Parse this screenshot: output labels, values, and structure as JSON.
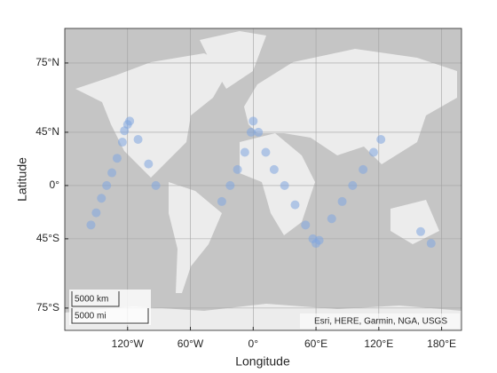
{
  "chart_data": {
    "type": "scatter",
    "xlabel": "Longitude",
    "ylabel": "Latitude",
    "x": [
      -155,
      -150,
      -145,
      -140,
      -135,
      -130,
      -125,
      -120,
      -118,
      -123,
      -110,
      -100,
      -93,
      -30,
      -22,
      -15,
      -8,
      -2,
      0,
      5,
      12,
      20,
      30,
      40,
      50,
      57,
      60,
      63,
      75,
      85,
      95,
      105,
      115,
      122,
      160,
      170
    ],
    "values": [
      -35,
      -25,
      -12,
      0,
      12,
      25,
      38,
      50,
      52,
      46,
      40,
      20,
      0,
      -15,
      0,
      15,
      30,
      45,
      52,
      45,
      30,
      15,
      0,
      -18,
      -35,
      -45,
      -48,
      -46,
      -30,
      -15,
      0,
      15,
      30,
      40,
      -40,
      -48
    ],
    "color": "#7fa6e0",
    "xlim": [
      -180,
      199
    ],
    "ylim": [
      -79.6,
      81.5
    ],
    "xticks": [
      {
        "value": -120,
        "label": "120°W"
      },
      {
        "value": -60,
        "label": "60°W"
      },
      {
        "value": 0,
        "label": "0°"
      },
      {
        "value": 60,
        "label": "60°E"
      },
      {
        "value": 120,
        "label": "120°E"
      },
      {
        "value": 180,
        "label": "180°E"
      }
    ],
    "yticks": [
      {
        "value": -75,
        "label": "75°S"
      },
      {
        "value": -45,
        "label": "45°S"
      },
      {
        "value": 0,
        "label": "0°"
      },
      {
        "value": 45,
        "label": "45°N"
      },
      {
        "value": 75,
        "label": "75°N"
      }
    ],
    "grid": true,
    "scalebar": [
      "5000 km",
      "5000 mi"
    ],
    "attribution": "Esri, HERE, Garmin, NGA, USGS"
  }
}
